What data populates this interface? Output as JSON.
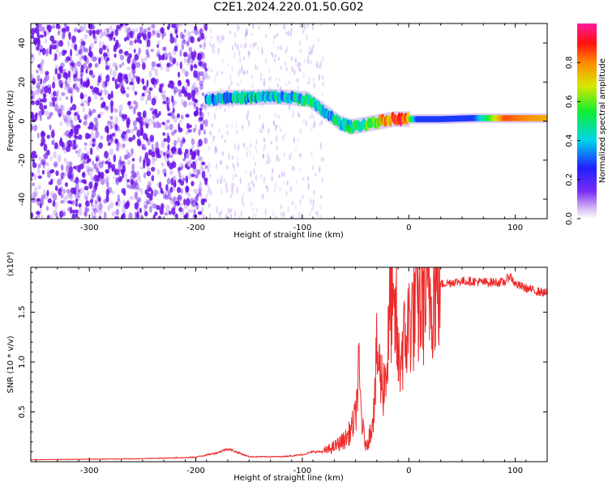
{
  "title": "C2E1.2024.220.01.50.G02",
  "colors": {
    "snr_line": "#ee2b2b",
    "axis": "#000000",
    "background": "#ffffff",
    "speckle": "#6a12e8"
  },
  "chart_data": [
    {
      "type": "heatmap",
      "title": "C2E1.2024.220.01.50.G02",
      "xlabel": "Height of straight line (km)",
      "ylabel": "Frequency (Hz)",
      "xlim": [
        -355,
        130
      ],
      "ylim": [
        -50,
        50
      ],
      "x_ticks": [
        -300,
        -200,
        -100,
        0,
        100
      ],
      "y_ticks": [
        -40,
        -20,
        0,
        20,
        40
      ],
      "grid": false,
      "colormap": "rainbow (white-purple-blue-cyan-green-yellow-red-magenta)",
      "colorbar": {
        "label": "Normalized spectral amplitude",
        "range": [
          0,
          1
        ],
        "ticks": [
          "0.0",
          "0.2",
          "0.4",
          "0.6",
          "0.8"
        ]
      },
      "ridge": {
        "x": [
          -190,
          -170,
          -150,
          -130,
          -110,
          -95,
          -85,
          -75,
          -65,
          -55,
          -45,
          -35,
          -25,
          -15,
          -5,
          10,
          30,
          60,
          90,
          130
        ],
        "frequency": [
          11,
          12,
          12,
          12.5,
          12,
          11,
          7,
          3,
          -1,
          -3,
          -2,
          -1,
          0,
          1,
          1,
          1,
          1,
          1.5,
          1.5,
          1.5
        ],
        "amplitude": [
          0.35,
          0.4,
          0.4,
          0.4,
          0.4,
          0.45,
          0.45,
          0.4,
          0.45,
          0.45,
          0.5,
          0.55,
          0.75,
          0.85,
          0.9,
          0.15,
          0.15,
          0.25,
          0.85,
          0.75
        ]
      },
      "noise_region_x": [
        -355,
        -190
      ],
      "sparse_noise_region_x": [
        -190,
        -80
      ]
    },
    {
      "type": "line",
      "xlabel": "Height of straight line (km)",
      "ylabel": "SNR (10 * v/v)",
      "y_multiplier": "(x10⁴)",
      "xlim": [
        -355,
        130
      ],
      "ylim": [
        0,
        19500
      ],
      "x_ticks": [
        -300,
        -200,
        -100,
        0,
        100
      ],
      "y_ticks": [
        "0.5",
        "1.0",
        "1.5"
      ],
      "y_tick_values": [
        5000,
        10000,
        15000
      ],
      "grid": false,
      "series": [
        {
          "x": [
            -355,
            -300,
            -250,
            -200,
            -180,
            -170,
            -160,
            -150,
            -120,
            -100,
            -90,
            -80,
            -70,
            -60,
            -55,
            -50,
            -47,
            -44,
            -42,
            -40,
            -36,
            -32,
            -30,
            -27,
            -24,
            -20,
            -17,
            -14,
            -12,
            -10,
            -6,
            -2,
            0,
            5,
            10,
            15,
            20,
            25,
            30,
            40,
            50,
            60,
            70,
            80,
            90,
            95,
            100,
            110,
            120,
            130
          ],
          "y": [
            200,
            250,
            300,
            450,
            900,
            1300,
            900,
            500,
            500,
            700,
            1000,
            1000,
            1500,
            2200,
            3000,
            4500,
            9000,
            4000,
            2500,
            1500,
            3000,
            6000,
            11000,
            9000,
            7500,
            10000,
            17000,
            13000,
            15000,
            9500,
            11500,
            12500,
            14000,
            15000,
            15500,
            16500,
            17000,
            17400,
            17800,
            18000,
            18100,
            18100,
            18000,
            18000,
            18000,
            18700,
            17800,
            17400,
            17100,
            16900
          ]
        }
      ]
    }
  ]
}
